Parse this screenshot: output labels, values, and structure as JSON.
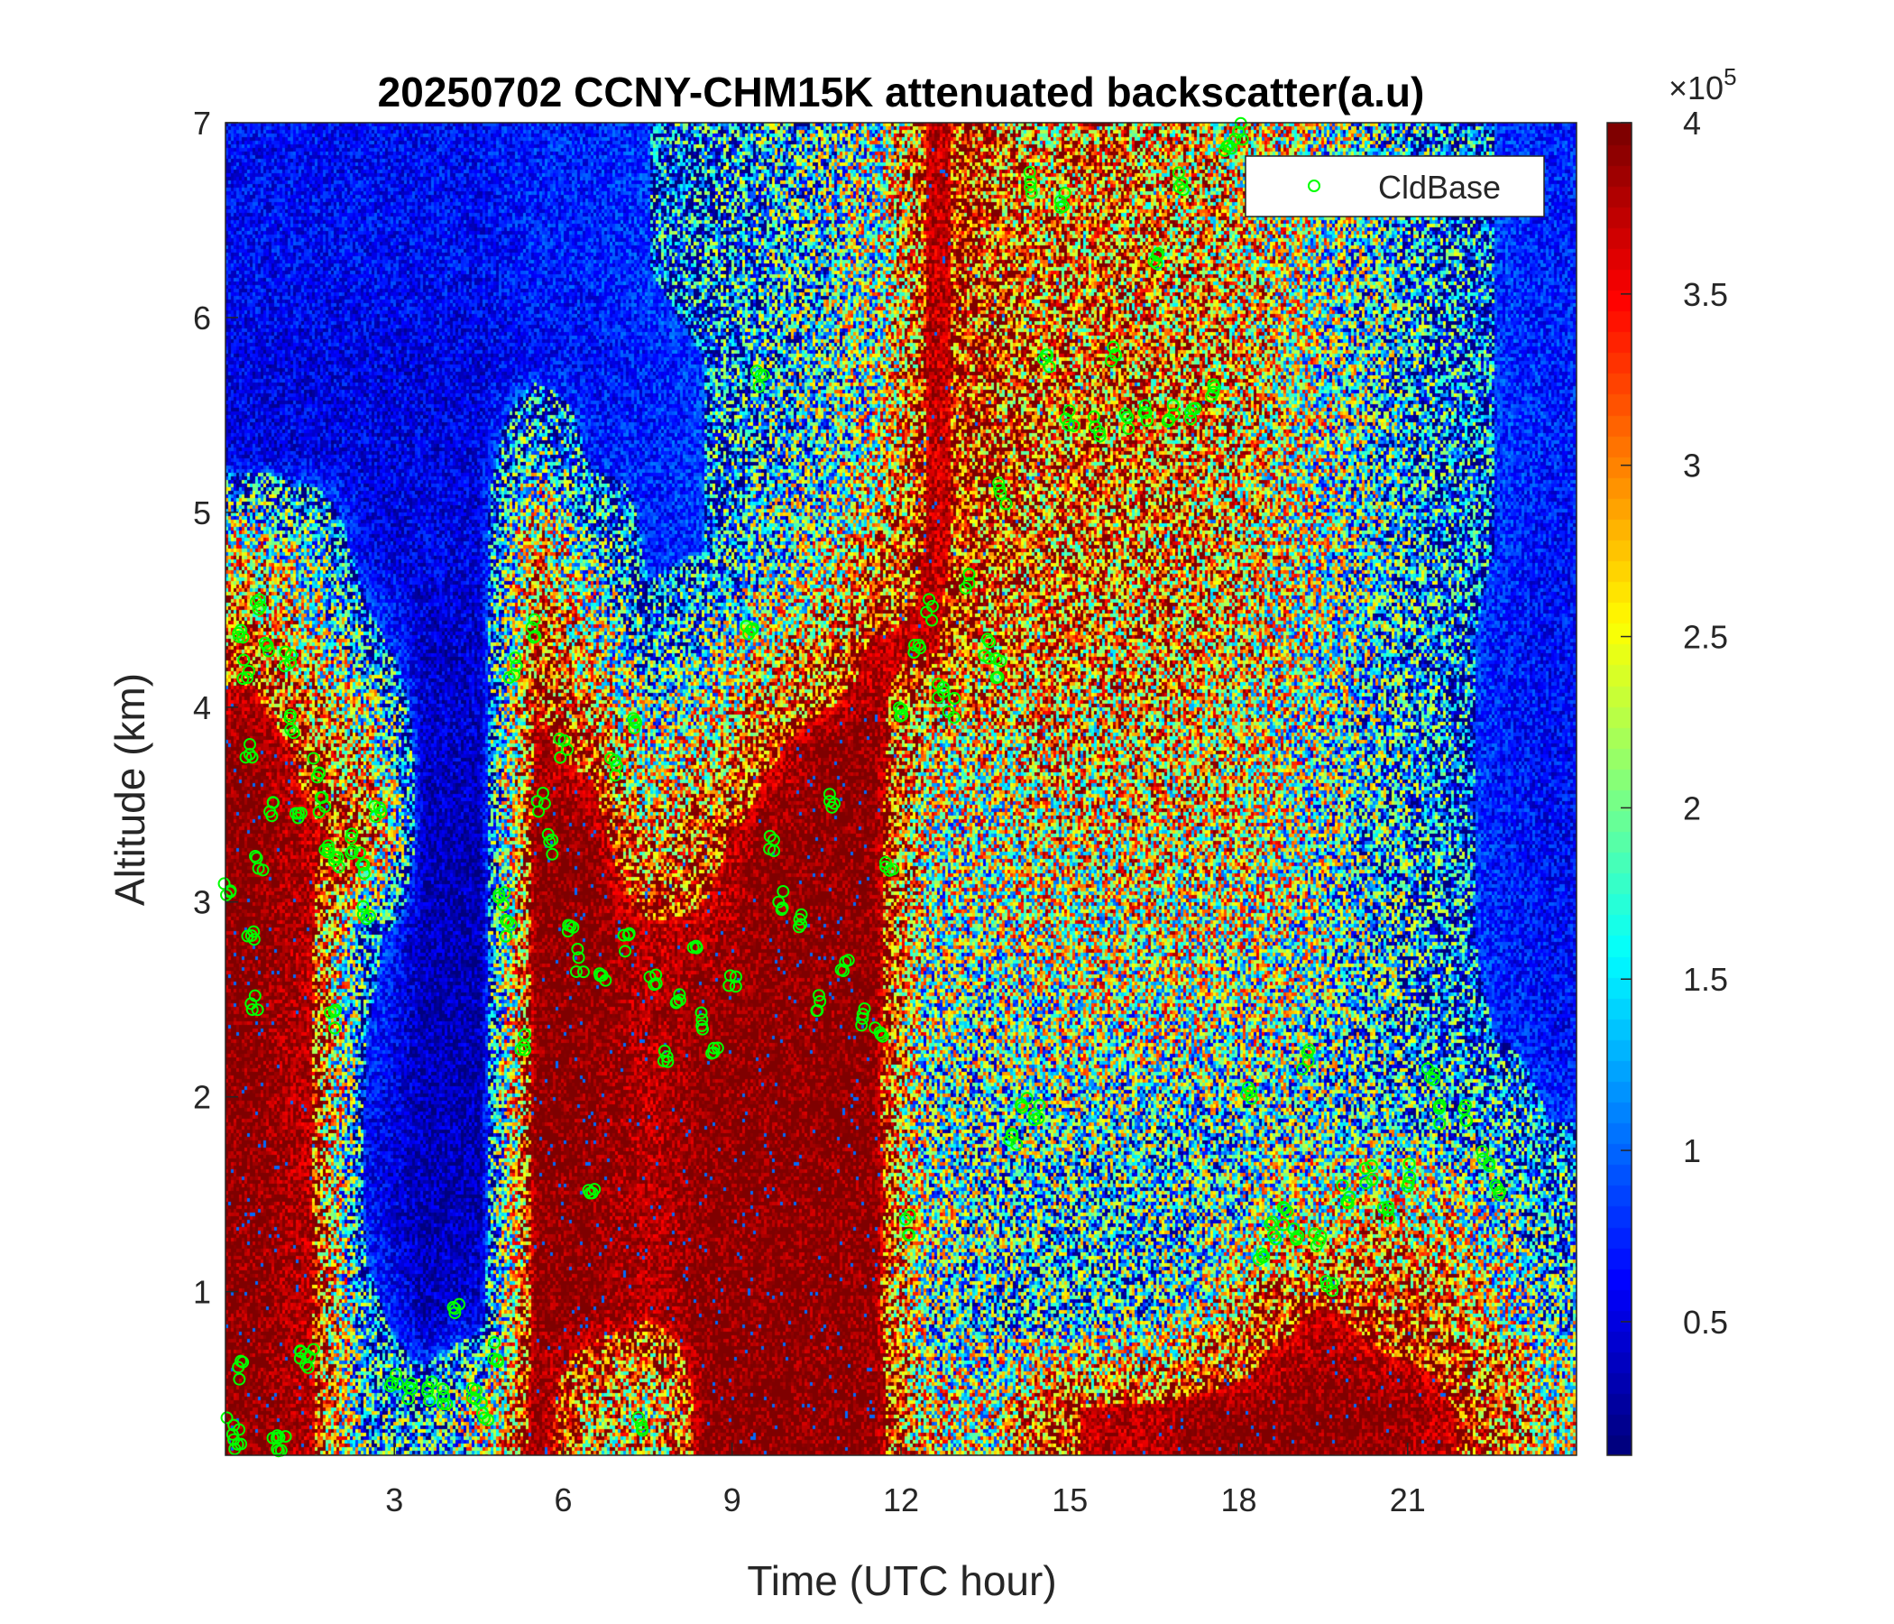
{
  "chart_data": {
    "type": "heatmap",
    "title": "20250702 CCNY-CHM15K attenuated backscatter(a.u)",
    "xlabel": "Time (UTC hour)",
    "ylabel": "Altitude (km)",
    "xlim": [
      0,
      24
    ],
    "ylim": [
      0.16,
      7
    ],
    "xticks": [
      3,
      6,
      9,
      12,
      15,
      18,
      21
    ],
    "yticks": [
      1,
      2,
      3,
      4,
      5,
      6,
      7
    ],
    "colormap": "jet",
    "colorbar": {
      "clim": [
        0.11,
        4
      ],
      "ticks": [
        0.5,
        1,
        1.5,
        2,
        2.5,
        3,
        3.5,
        4
      ],
      "exponent_label": "×10",
      "exponent": "5"
    },
    "grid": false,
    "heatmap_grid_note": "",
    "x_bins_hour_centers": [
      0.5,
      1.5,
      2.5,
      3.5,
      4.5,
      5.5,
      6.5,
      7.5,
      8.5,
      9.5,
      10.5,
      11.5,
      12.5,
      13.5,
      14.5,
      15.5,
      16.5,
      17.5,
      18.5,
      19.5,
      20.5,
      21.5,
      22.5,
      23.5
    ],
    "y_bins_km_centers": [
      6.75,
      6.25,
      5.75,
      5.25,
      4.75,
      4.25,
      3.75,
      3.25,
      2.75,
      2.25,
      1.75,
      1.25,
      0.75,
      0.33
    ],
    "values_e5": [
      [
        0.6,
        0.6,
        0.6,
        0.6,
        0.6,
        0.7,
        0.7,
        0.8,
        0.9,
        1.2,
        1.5,
        2,
        3.8,
        3.5,
        3,
        3.2,
        3,
        2.8,
        2.5,
        2,
        1.5,
        1,
        0.8,
        0.7
      ],
      [
        0.6,
        0.6,
        0.6,
        0.6,
        0.6,
        0.7,
        0.7,
        0.8,
        0.9,
        1.2,
        1.5,
        2,
        3.8,
        3.5,
        3.1,
        3.2,
        3.1,
        2.9,
        2.5,
        2,
        1.5,
        1,
        0.8,
        0.7
      ],
      [
        0.5,
        0.5,
        0.5,
        0.5,
        0.5,
        0.6,
        0.6,
        0.7,
        0.8,
        1.2,
        1.5,
        2,
        3.8,
        3.5,
        3.2,
        3.3,
        3.2,
        3,
        2.6,
        2,
        1.5,
        1,
        0.8,
        0.7
      ],
      [
        0.5,
        0.5,
        0.5,
        0.5,
        0.5,
        1.5,
        0.7,
        0.7,
        0.8,
        1.3,
        1.6,
        2.2,
        3.8,
        3.5,
        3.2,
        3.3,
        3.2,
        3,
        2.6,
        2,
        1.5,
        1,
        0.8,
        0.7
      ],
      [
        2.5,
        1.5,
        0.5,
        0.5,
        0.5,
        3,
        1.5,
        0.7,
        0.8,
        1.5,
        2,
        3,
        3.8,
        3.5,
        3.2,
        3.2,
        3.1,
        3,
        2.6,
        2,
        1.5,
        1,
        0.8,
        0.6
      ],
      [
        3.5,
        2.5,
        1,
        0.4,
        0.4,
        3.5,
        2.5,
        1,
        1.5,
        2.5,
        3,
        3.8,
        3.8,
        3.2,
        3,
        3,
        3,
        2.8,
        2.5,
        2,
        1.5,
        1,
        0.7,
        0.6
      ],
      [
        4,
        3.5,
        2.5,
        0.4,
        0.4,
        3.8,
        3.5,
        2,
        2.5,
        3.5,
        4,
        4,
        2.5,
        2.5,
        2.8,
        2.8,
        2.8,
        2.7,
        2.4,
        1.8,
        1.4,
        1,
        0.7,
        0.6
      ],
      [
        4,
        3.8,
        3.5,
        0.3,
        0.3,
        4,
        4,
        3,
        3.5,
        4,
        4,
        4,
        2.2,
        2.2,
        2.5,
        2.6,
        2.6,
        2.5,
        2.3,
        1.8,
        1.4,
        1,
        0.7,
        0.6
      ],
      [
        4,
        3.8,
        1,
        0.3,
        0.3,
        4,
        4,
        3.8,
        3.8,
        4,
        4,
        4,
        2,
        2,
        2.3,
        2.4,
        2.4,
        2.3,
        2.2,
        1.8,
        1.4,
        1,
        0.7,
        0.6
      ],
      [
        4,
        3.8,
        0.8,
        0.3,
        0.3,
        4,
        4,
        3.8,
        4,
        4,
        4,
        4,
        1.8,
        1.8,
        2,
        2.1,
        2.1,
        2,
        2,
        1.7,
        1.4,
        1,
        0.8,
        0.6
      ],
      [
        4,
        3.8,
        0.6,
        0.3,
        0.3,
        4,
        4,
        3.8,
        4,
        4,
        4,
        4,
        1.6,
        1.6,
        1.7,
        1.6,
        1.6,
        1.6,
        1.7,
        1.6,
        1.5,
        1.3,
        1.2,
        0.8
      ],
      [
        4,
        3.8,
        0.6,
        0.3,
        0.3,
        4,
        4,
        3.8,
        4,
        4,
        4,
        4,
        2,
        1.6,
        1.5,
        1.4,
        1.4,
        1.5,
        2,
        2.5,
        2.8,
        2.6,
        1.8,
        1.2
      ],
      [
        4,
        3.8,
        1,
        0.3,
        0.5,
        4,
        4,
        3.8,
        4,
        4,
        4,
        4,
        1.5,
        1.4,
        1.3,
        1.3,
        1.5,
        2.5,
        3.5,
        3.8,
        3.5,
        3.5,
        2.5,
        1.5
      ],
      [
        4,
        3.8,
        1.3,
        1.2,
        2,
        4,
        3,
        2.5,
        4,
        4,
        4,
        4,
        2.5,
        2.2,
        3.5,
        3.8,
        3.8,
        4,
        4,
        4,
        4,
        3.8,
        3.5,
        2.5
      ]
    ],
    "legend": {
      "position": "top-right",
      "entries": [
        {
          "name": "CldBase",
          "marker": "circle",
          "color": "#00ff00"
        }
      ]
    },
    "series": [
      {
        "name": "CldBase",
        "type": "scatter",
        "color": "#00ff00",
        "points": [
          [
            0.05,
            3.05
          ],
          [
            0.1,
            0.3
          ],
          [
            0.2,
            0.25
          ],
          [
            0.25,
            0.6
          ],
          [
            0.3,
            4.4
          ],
          [
            0.35,
            4.2
          ],
          [
            0.4,
            3.8
          ],
          [
            0.45,
            2.8
          ],
          [
            0.5,
            2.5
          ],
          [
            0.55,
            4.5
          ],
          [
            0.6,
            3.2
          ],
          [
            0.7,
            4.3
          ],
          [
            0.8,
            3.5
          ],
          [
            0.9,
            0.22
          ],
          [
            1.0,
            0.2
          ],
          [
            1.1,
            4.25
          ],
          [
            1.2,
            3.9
          ],
          [
            1.3,
            3.4
          ],
          [
            1.35,
            0.7
          ],
          [
            1.5,
            0.65
          ],
          [
            1.6,
            3.7
          ],
          [
            1.7,
            3.5
          ],
          [
            1.8,
            3.3
          ],
          [
            1.9,
            2.4
          ],
          [
            2.0,
            3.2
          ],
          [
            2.2,
            3.3
          ],
          [
            2.4,
            3.2
          ],
          [
            2.5,
            2.95
          ],
          [
            2.7,
            3.45
          ],
          [
            3.0,
            0.55
          ],
          [
            3.3,
            0.5
          ],
          [
            3.6,
            0.48
          ],
          [
            3.9,
            0.45
          ],
          [
            4.1,
            0.9
          ],
          [
            4.4,
            0.45
          ],
          [
            4.6,
            0.4
          ],
          [
            4.8,
            0.7
          ],
          [
            4.9,
            3.0
          ],
          [
            5.0,
            2.85
          ],
          [
            5.1,
            4.2
          ],
          [
            5.3,
            2.3
          ],
          [
            5.5,
            4.4
          ],
          [
            5.6,
            3.5
          ],
          [
            5.8,
            3.3
          ],
          [
            6.0,
            3.8
          ],
          [
            6.1,
            2.9
          ],
          [
            6.3,
            2.7
          ],
          [
            6.5,
            1.5
          ],
          [
            6.7,
            2.6
          ],
          [
            6.9,
            3.7
          ],
          [
            7.1,
            2.8
          ],
          [
            7.3,
            3.9
          ],
          [
            7.4,
            0.3
          ],
          [
            7.6,
            2.6
          ],
          [
            7.8,
            2.2
          ],
          [
            8.0,
            2.5
          ],
          [
            8.3,
            2.8
          ],
          [
            8.5,
            2.4
          ],
          [
            8.7,
            2.2
          ],
          [
            9.0,
            2.6
          ],
          [
            9.3,
            4.4
          ],
          [
            9.5,
            5.7
          ],
          [
            9.7,
            3.3
          ],
          [
            9.9,
            3.0
          ],
          [
            10.2,
            2.9
          ],
          [
            10.5,
            2.5
          ],
          [
            10.8,
            3.5
          ],
          [
            11.0,
            2.7
          ],
          [
            11.3,
            2.4
          ],
          [
            11.6,
            2.3
          ],
          [
            11.8,
            3.2
          ],
          [
            12.0,
            4.0
          ],
          [
            12.1,
            1.35
          ],
          [
            12.3,
            4.3
          ],
          [
            12.5,
            4.5
          ],
          [
            12.7,
            4.1
          ],
          [
            12.9,
            4.0
          ],
          [
            13.2,
            4.65
          ],
          [
            13.5,
            4.3
          ],
          [
            13.7,
            4.2
          ],
          [
            13.8,
            5.1
          ],
          [
            14.0,
            1.8
          ],
          [
            14.2,
            2.0
          ],
          [
            14.4,
            1.9
          ],
          [
            14.3,
            6.7
          ],
          [
            14.6,
            5.8
          ],
          [
            14.9,
            6.6
          ],
          [
            15.0,
            5.5
          ],
          [
            15.5,
            5.45
          ],
          [
            15.8,
            5.8
          ],
          [
            16.0,
            5.45
          ],
          [
            16.3,
            5.5
          ],
          [
            16.5,
            6.3
          ],
          [
            16.8,
            5.5
          ],
          [
            17.0,
            6.7
          ],
          [
            17.2,
            5.5
          ],
          [
            17.5,
            5.6
          ],
          [
            17.8,
            6.9
          ],
          [
            18.0,
            6.95
          ],
          [
            18.2,
            2.0
          ],
          [
            18.4,
            1.2
          ],
          [
            18.6,
            1.3
          ],
          [
            18.8,
            1.4
          ],
          [
            19.0,
            1.3
          ],
          [
            19.2,
            2.2
          ],
          [
            19.4,
            1.25
          ],
          [
            19.6,
            1.0
          ],
          [
            19.9,
            1.5
          ],
          [
            20.3,
            1.6
          ],
          [
            20.6,
            1.4
          ],
          [
            21.0,
            1.6
          ],
          [
            21.4,
            2.1
          ],
          [
            21.6,
            1.9
          ],
          [
            22.0,
            1.9
          ],
          [
            22.4,
            1.7
          ],
          [
            22.6,
            1.5
          ]
        ]
      }
    ]
  }
}
